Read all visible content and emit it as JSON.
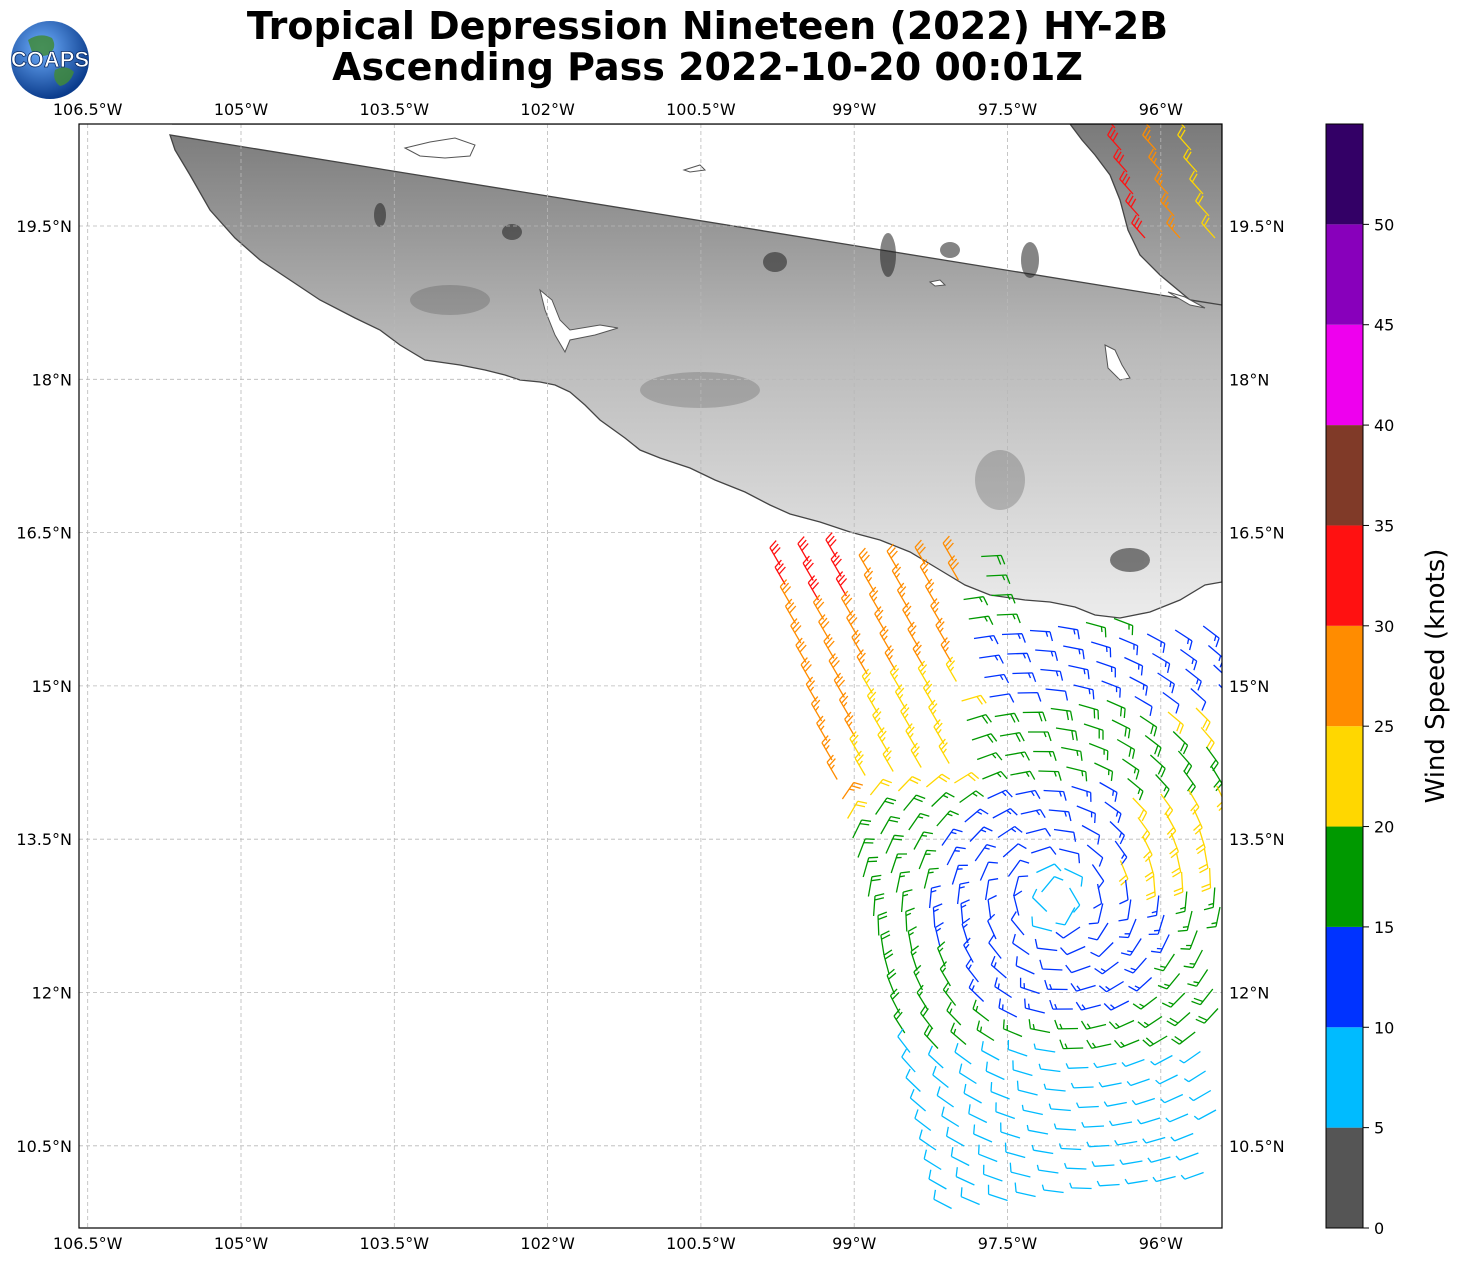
{
  "title": {
    "line1": "Tropical Depression Nineteen (2022) HY-2B",
    "line2": "Ascending Pass 2022-10-20 00:01Z"
  },
  "logo": {
    "text": "COAPS",
    "icon": "globe-logo-icon"
  },
  "map": {
    "lon_range": [
      -106.6,
      -95.4
    ],
    "lat_range": [
      9.7,
      20.5
    ],
    "lon_ticks": [
      "106.5°W",
      "105°W",
      "103.5°W",
      "102°W",
      "100.5°W",
      "99°W",
      "97.5°W",
      "96°W"
    ],
    "lat_ticks": [
      "19.5°N",
      "18°N",
      "16.5°N",
      "15°N",
      "13.5°N",
      "12°N",
      "10.5°N"
    ],
    "land_shading": "grayscale elevation",
    "grid": true
  },
  "colorbar": {
    "label": "Wind Speed (knots)",
    "ticks": [
      "0",
      "5",
      "10",
      "15",
      "20",
      "25",
      "30",
      "35",
      "40",
      "45",
      "50"
    ],
    "bins": [
      {
        "from": 0,
        "to": 5,
        "color": "#555555"
      },
      {
        "from": 5,
        "to": 10,
        "color": "#00bbff"
      },
      {
        "from": 10,
        "to": 15,
        "color": "#0033ff"
      },
      {
        "from": 15,
        "to": 20,
        "color": "#009900"
      },
      {
        "from": 20,
        "to": 25,
        "color": "#ffd700"
      },
      {
        "from": 25,
        "to": 30,
        "color": "#ff8c00"
      },
      {
        "from": 30,
        "to": 35,
        "color": "#ff1111"
      },
      {
        "from": 35,
        "to": 40,
        "color": "#803a28"
      },
      {
        "from": 40,
        "to": 45,
        "color": "#ee00ee"
      },
      {
        "from": 45,
        "to": 50,
        "color": "#8800bb"
      },
      {
        "from": 50,
        "to": 55,
        "color": "#330066"
      }
    ]
  }
}
